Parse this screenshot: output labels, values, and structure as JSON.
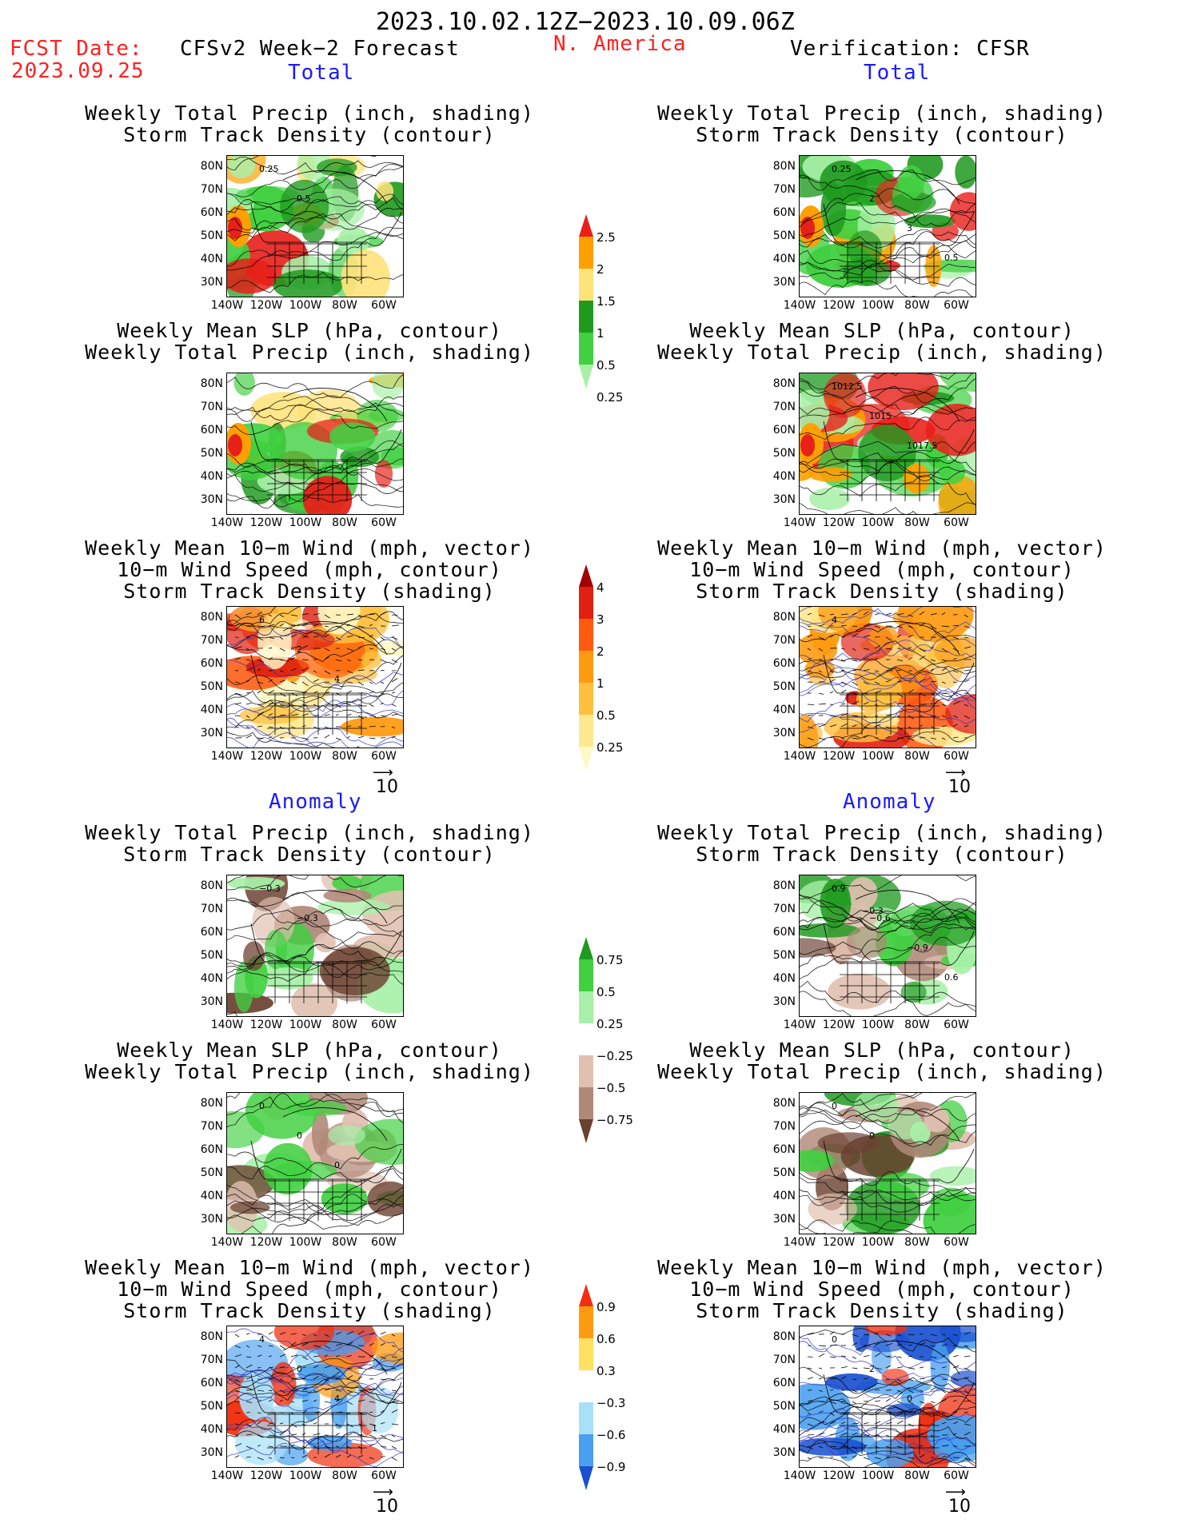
{
  "header": {
    "period": "2023.10.02.12Z−2023.10.09.06Z",
    "fcst_label": "FCST Date:",
    "fcst_date": "2023.09.25",
    "left_title": "CFSv2 Week−2 Forecast",
    "region": "N. America",
    "right_title": "Verification: CFSR"
  },
  "sections": {
    "total": "Total",
    "anomaly": "Anomaly"
  },
  "panel_titles": {
    "precip_storm": [
      "Weekly Total Precip (inch, shading)",
      "Storm Track Density (contour)"
    ],
    "slp_precip": [
      "Weekly Mean SLP (hPa, contour)",
      "Weekly Total Precip (inch, shading)"
    ],
    "wind_storm": [
      "Weekly Mean 10−m Wind (mph, vector)",
      "10−m Wind Speed (mph, contour)",
      "Storm Track Density (shading)"
    ]
  },
  "axes": {
    "lat": [
      "80N",
      "70N",
      "60N",
      "50N",
      "40N",
      "30N"
    ],
    "lon": [
      "140W",
      "120W",
      "100W",
      "80W",
      "60W"
    ]
  },
  "vector_ref": "10",
  "colorbars": {
    "precip_total": {
      "labels": [
        "2.5",
        "2",
        "1.5",
        "1",
        "0.5",
        "0.25"
      ],
      "colors": [
        "#e8201a",
        "#ffa000",
        "#ffe27a",
        "#1f9a1f",
        "#40d040",
        "#a8f0a8"
      ]
    },
    "storm_total": {
      "labels": [
        "4",
        "3",
        "2",
        "1",
        "0.5",
        "0.25"
      ],
      "colors": [
        "#a00000",
        "#e02010",
        "#ff5a10",
        "#ff9a10",
        "#ffc040",
        "#ffe890",
        "#fff8c8"
      ]
    },
    "precip_anom": {
      "labels": [
        "0.75",
        "0.5",
        "0.25",
        "−0.25",
        "−0.5",
        "−0.75"
      ],
      "colors": [
        "#1f9a1f",
        "#40d040",
        "#a8f0a8",
        "#ffffff",
        "#e0c0b0",
        "#b08878",
        "#6a4030"
      ]
    },
    "storm_anom": {
      "labels": [
        "0.9",
        "0.6",
        "0.3",
        "−0.3",
        "−0.6",
        "−0.9"
      ],
      "colors": [
        "#f03010",
        "#ff9a10",
        "#ffe060",
        "#ffffff",
        "#a8e0f8",
        "#4aa0f0",
        "#1a50d0"
      ]
    }
  },
  "panel_annotations": {
    "fc_precip_total": [
      "0.25",
      "0.5"
    ],
    "ob_precip_total": [
      "0.25",
      "2",
      "3",
      "0.5"
    ],
    "ob_slp_total": [
      "1012.5",
      "1015",
      "1017.5"
    ],
    "fc_wind_total": [
      "6",
      "2",
      "4"
    ],
    "ob_wind_total": [
      "4"
    ],
    "fc_precip_anom": [
      "−0.3",
      "−0.3"
    ],
    "ob_precip_anom": [
      "0.9",
      "−0.6",
      "−0.9",
      "0.6",
      "−0.3"
    ],
    "fc_slp_anom": [
      "0",
      "0",
      "0"
    ],
    "ob_slp_anom": [
      "0",
      "0"
    ],
    "fc_wind_anom": [
      "4",
      "0",
      "4",
      "1"
    ],
    "ob_wind_anom": [
      "0",
      "2",
      "0"
    ]
  }
}
